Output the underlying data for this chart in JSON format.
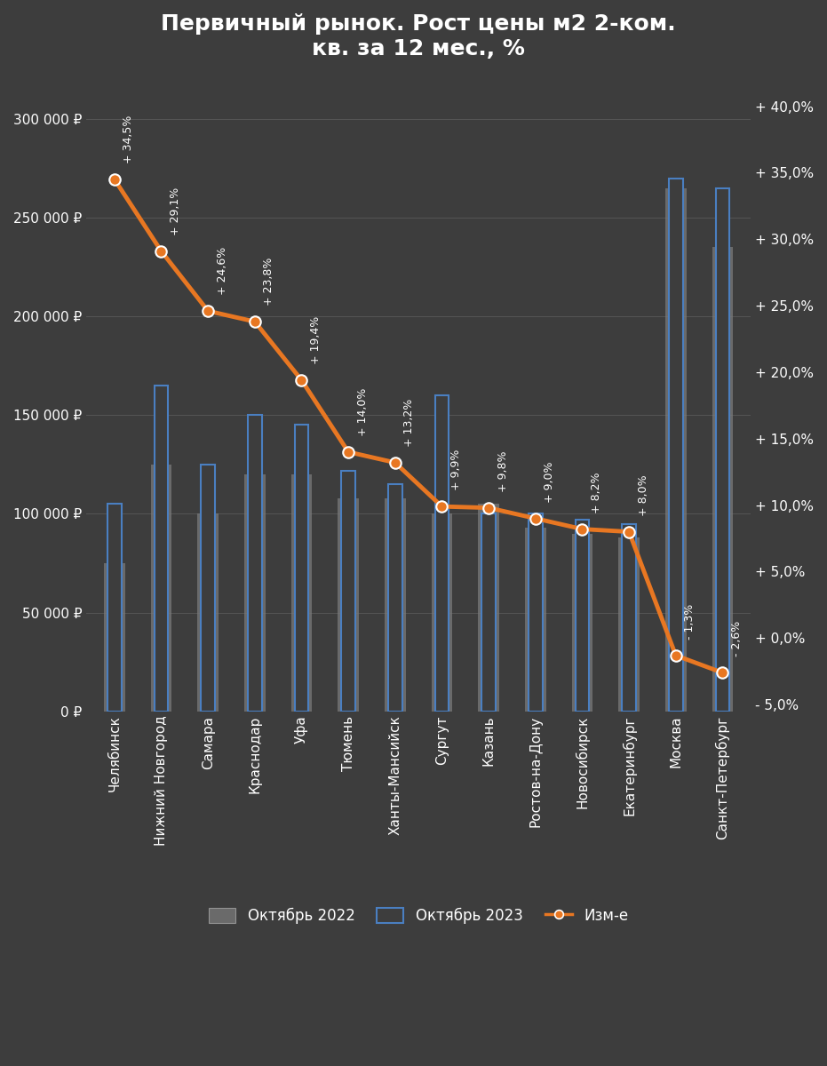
{
  "title": "Первичный рынок. Рост цены м2 2-ком.\nкв. за 12 мес., %",
  "categories": [
    "Челябинск",
    "Нижний Новгород",
    "Самара",
    "Краснодар",
    "Уфа",
    "Тюмень",
    "Ханты-Мансийск",
    "Сургут",
    "Казань",
    "Ростов-на-Дону",
    "Новосибирск",
    "Екатеринбург",
    "Москва",
    "Санкт-Петербург"
  ],
  "oct2022": [
    75000,
    125000,
    100000,
    120000,
    120000,
    108000,
    108000,
    100000,
    105000,
    93000,
    90000,
    88000,
    265000,
    235000
  ],
  "oct2023": [
    105000,
    165000,
    125000,
    150000,
    145000,
    122000,
    115000,
    160000,
    100000,
    100000,
    97000,
    95000,
    270000,
    265000
  ],
  "change_pct": [
    34.5,
    29.1,
    24.6,
    23.8,
    19.4,
    14.0,
    13.2,
    9.9,
    9.8,
    9.0,
    8.2,
    8.0,
    -1.3,
    -2.6
  ],
  "change_labels": [
    "+ 34,5%",
    "+ 29,1%",
    "+ 24,6%",
    "+ 23,8%",
    "+ 19,4%",
    "+ 14,0%",
    "+ 13,2%",
    "+ 9,9%",
    "+ 9,8%",
    "+ 9,0%",
    "+ 8,2%",
    "+ 8,0%",
    "- 1,3%",
    "- 2,6%"
  ],
  "background_color": "#3d3d3d",
  "bar_color_2022": "#7a7a7a",
  "bar_color_2023_edge": "#4a7fc1",
  "line_color": "#e87722",
  "text_color": "#ffffff",
  "grid_color": "#555555",
  "ylim_left": [
    0,
    320000
  ],
  "ylim_right": [
    -5.5,
    42.0
  ],
  "yticks_left": [
    0,
    50000,
    100000,
    150000,
    200000,
    250000,
    300000
  ],
  "yticks_right": [
    -5.0,
    0.0,
    5.0,
    10.0,
    15.0,
    20.0,
    25.0,
    30.0,
    35.0,
    40.0
  ],
  "ytick_labels_left": [
    "0 ₽",
    "50 000 ₽",
    "100 000 ₽",
    "150 000 ₽",
    "200 000 ₽",
    "250 000 ₽",
    "300 000 ₽"
  ],
  "ytick_labels_right": [
    "- 5,0%",
    "+ 0,0%",
    "+ 5,0%",
    "+ 10,0%",
    "+ 15,0%",
    "+ 20,0%",
    "+ 25,0%",
    "+ 30,0%",
    "+ 35,0%",
    "+ 40,0%"
  ]
}
